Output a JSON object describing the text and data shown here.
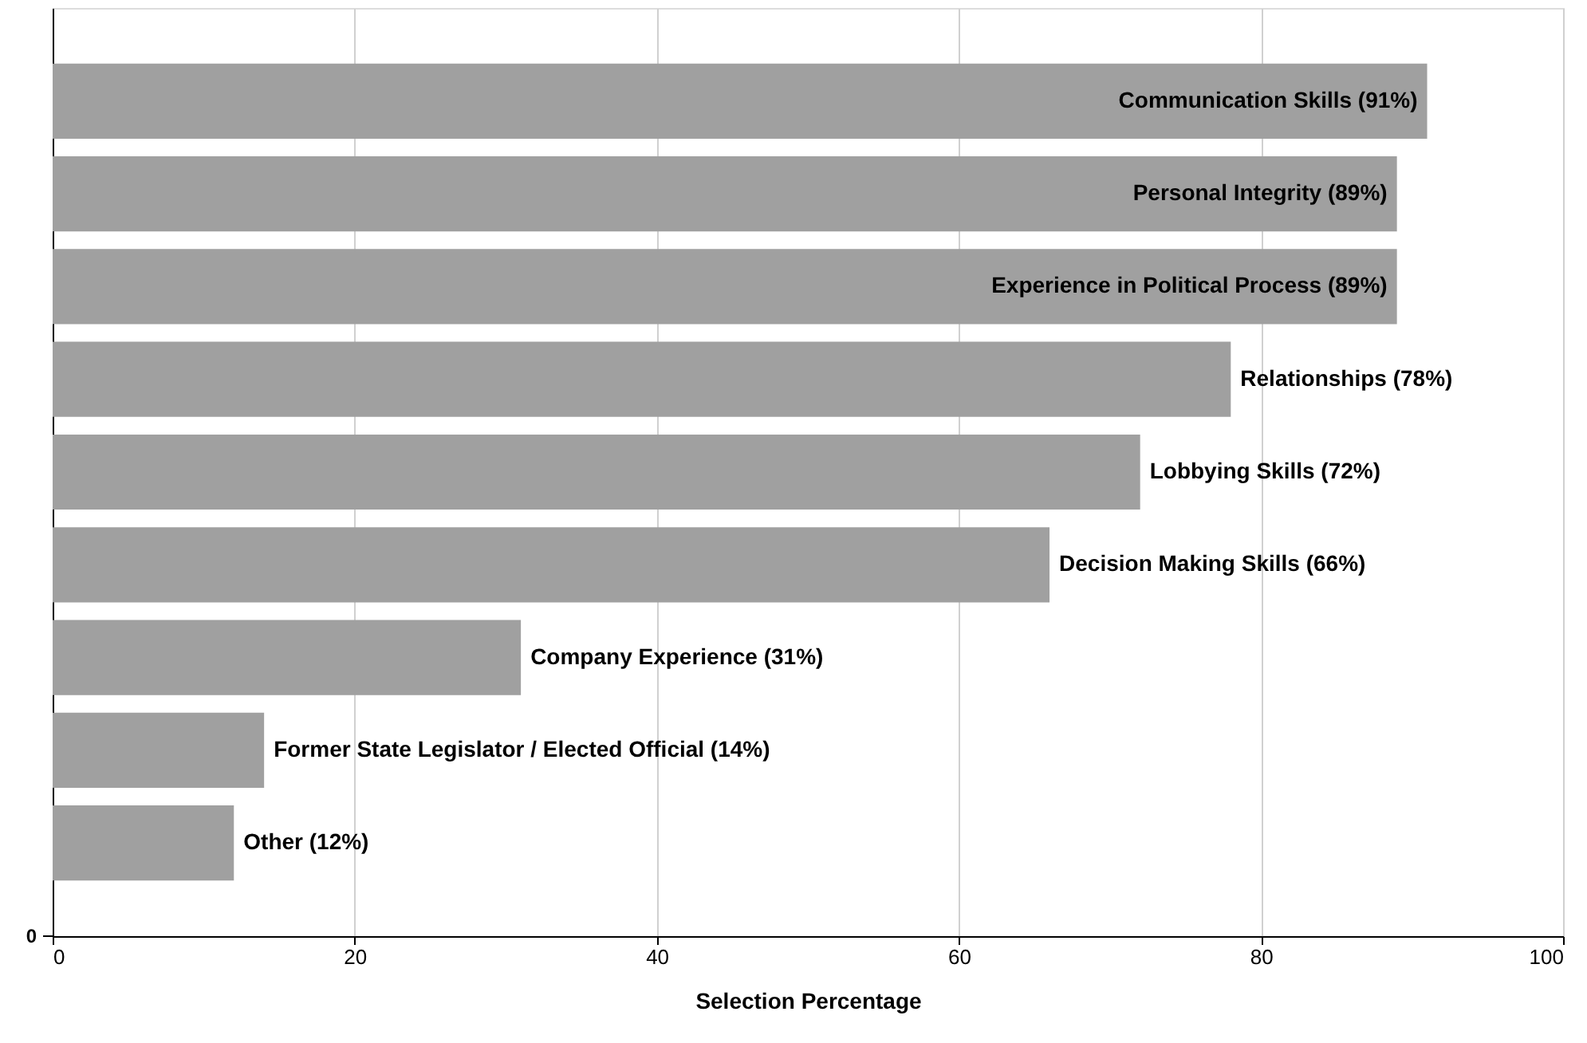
{
  "chart_data": {
    "type": "bar",
    "orientation": "horizontal",
    "xlabel": "Selection Percentage",
    "categories": [
      "Communication Skills (91%)",
      "Personal Integrity (89%)",
      "Experience in Political Process (89%)",
      "Relationships (78%)",
      "Lobbying Skills (72%)",
      "Decision Making Skills (66%)",
      "Company Experience (31%)",
      "Former State Legislator / Elected Official (14%)",
      "Other (12%)"
    ],
    "values": [
      91,
      89,
      89,
      78,
      72,
      66,
      31,
      14,
      12
    ],
    "color": "#a0a0a0",
    "xlim": [
      0,
      100
    ],
    "xticks": [
      0,
      20,
      40,
      60,
      80,
      100
    ],
    "grid": "x",
    "annotations": [
      "0"
    ]
  }
}
